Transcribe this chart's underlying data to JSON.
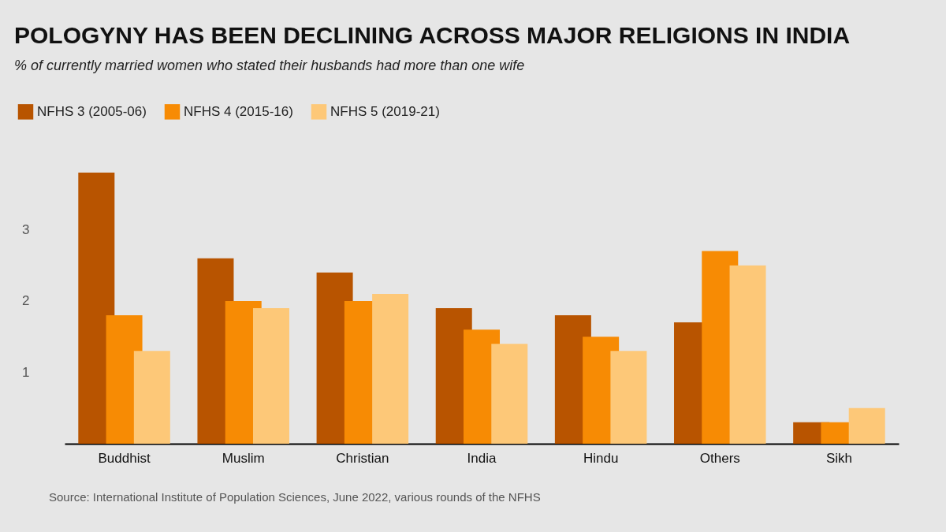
{
  "chart_data": {
    "type": "bar",
    "title": "POLOGYNY HAS BEEN DECLINING ACROSS MAJOR RELIGIONS IN INDIA",
    "subtitle": "% of currently married women who stated their husbands had more than one wife",
    "categories": [
      "Buddhist",
      "Muslim",
      "Christian",
      "India",
      "Hindu",
      "Others",
      "Sikh"
    ],
    "series": [
      {
        "name": "NFHS 3 (2005-06)",
        "color": "#b85400",
        "values": [
          3.8,
          2.6,
          2.4,
          1.9,
          1.8,
          1.7,
          0.3
        ]
      },
      {
        "name": "NFHS 4 (2015-16)",
        "color": "#f78b04",
        "values": [
          1.8,
          2.0,
          2.0,
          1.6,
          1.5,
          2.7,
          0.3
        ]
      },
      {
        "name": "NFHS 5 (2019-21)",
        "color": "#fdc878",
        "values": [
          1.3,
          1.9,
          2.1,
          1.4,
          1.3,
          2.5,
          0.5
        ]
      }
    ],
    "ylim": [
      0,
      3.8
    ],
    "yticks": [
      1,
      2,
      3
    ],
    "grid": false,
    "legend": "top left",
    "annotations": [
      "Source: International Institute of Population Sciences, June 2022, various rounds of the NFHS"
    ]
  }
}
